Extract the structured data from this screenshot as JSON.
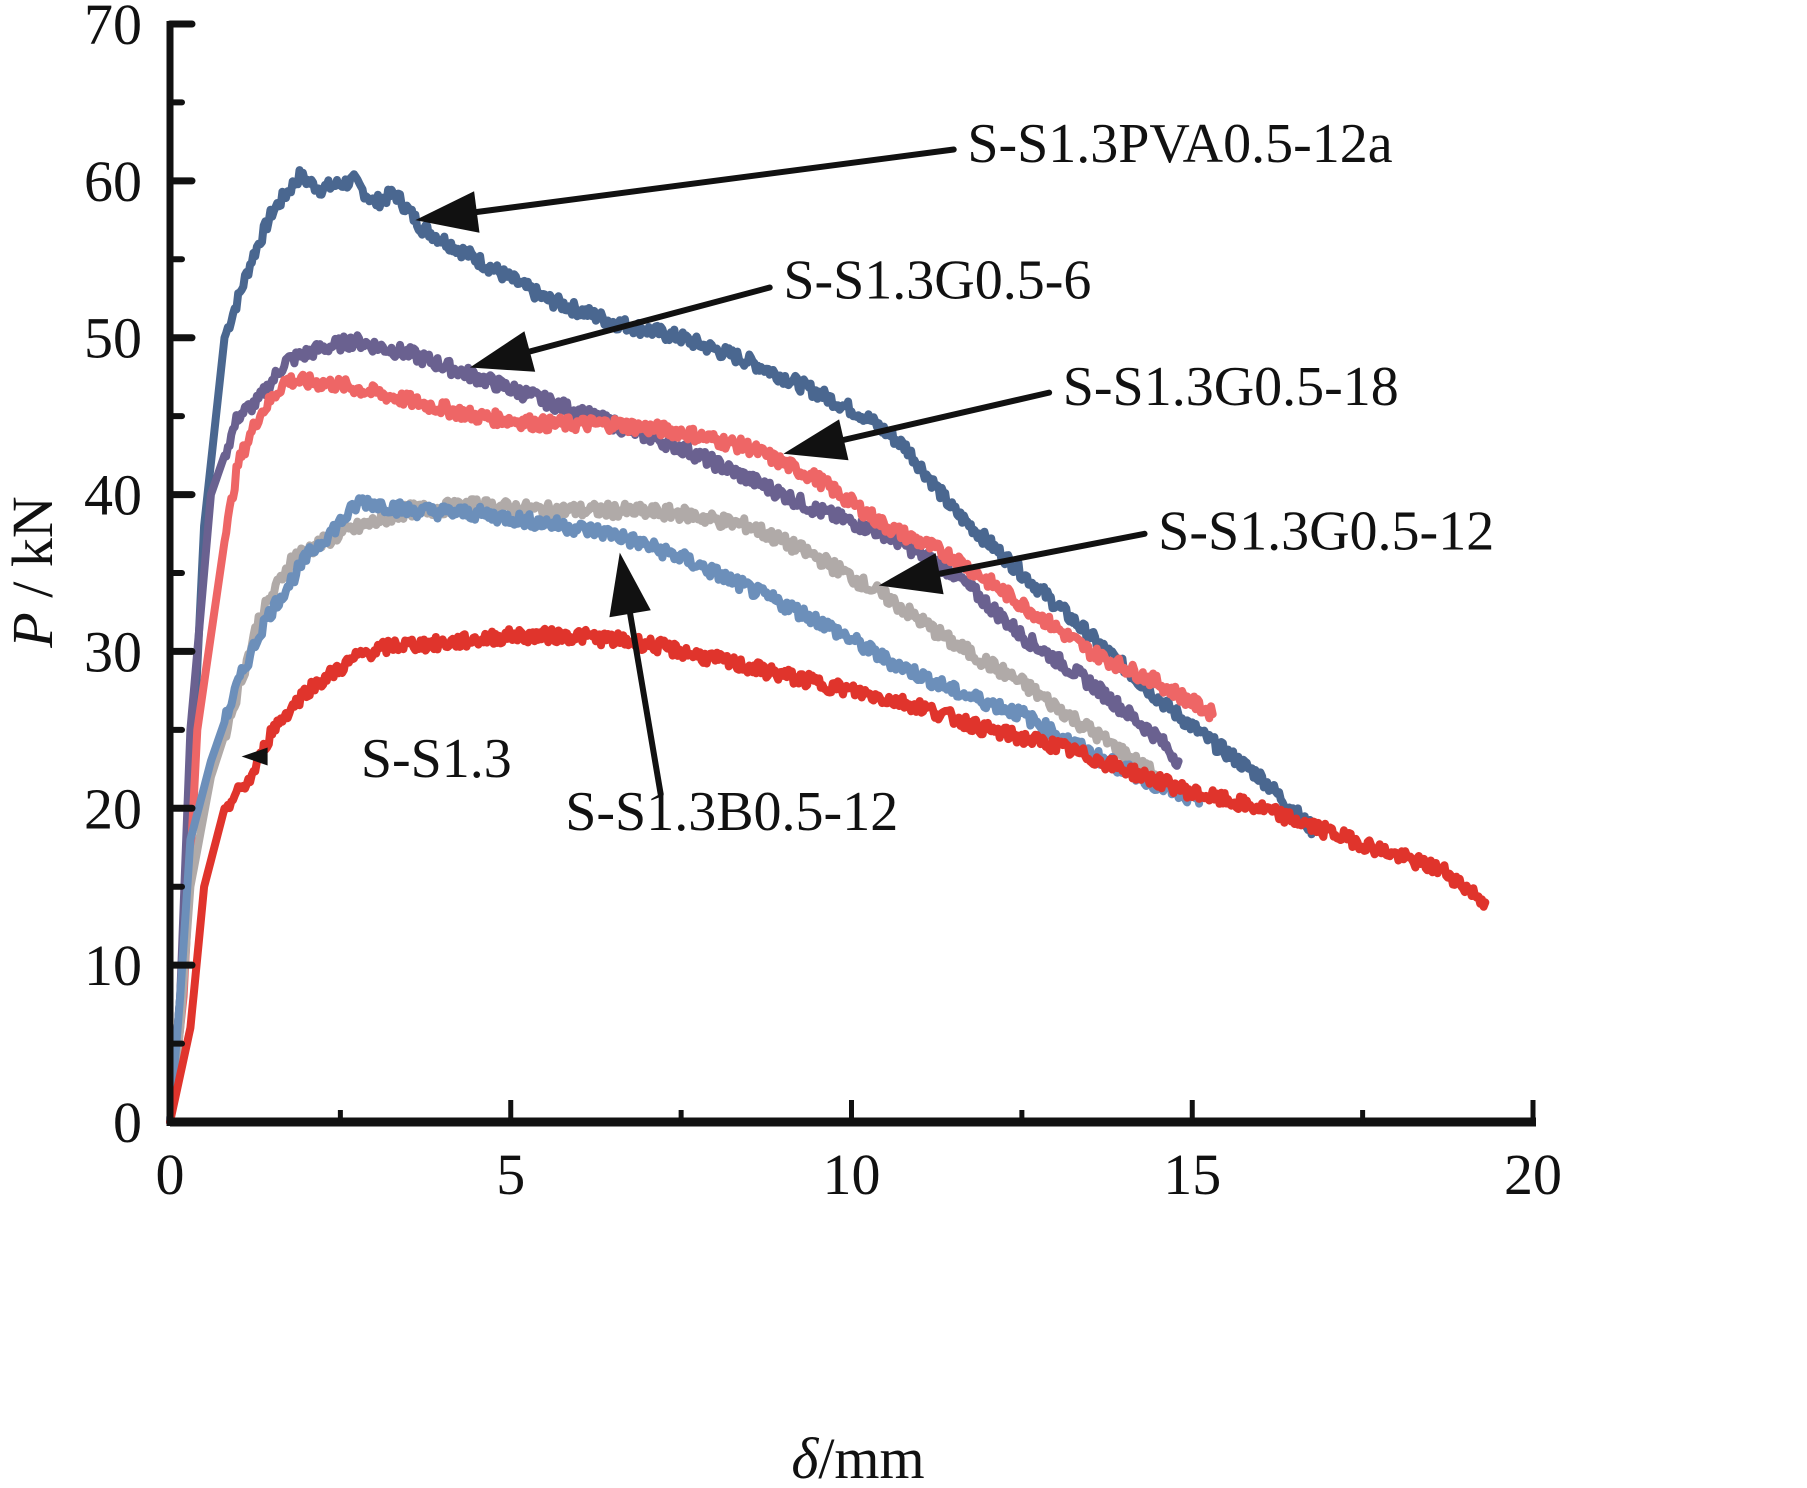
{
  "chart_data": {
    "type": "line",
    "title": "",
    "xlabel": "δ/mm",
    "xlabel_parts": {
      "symbol": "δ",
      "unit": "/mm"
    },
    "ylabel": "P / kN",
    "ylabel_parts": {
      "symbol": "P",
      "unit": " / kN"
    },
    "xlim": [
      0,
      20
    ],
    "ylim": [
      0,
      70
    ],
    "xticks": [
      0,
      5,
      10,
      15,
      20
    ],
    "xtick_labels": [
      "0",
      "5",
      "10",
      "15",
      "20"
    ],
    "xminor": [
      2.5,
      7.5,
      12.5,
      17.5
    ],
    "yticks": [
      0,
      10,
      20,
      30,
      40,
      50,
      60,
      70
    ],
    "ytick_labels": [
      "0",
      "10",
      "20",
      "30",
      "40",
      "50",
      "60",
      "70"
    ],
    "yminor": [
      5,
      15,
      25,
      35,
      45,
      55,
      65
    ],
    "grid": false,
    "legend": "none (curves labeled by annotations with arrows)",
    "series": [
      {
        "name": "S-S1.3PVA0.5-12a",
        "color": "#4a6790",
        "x": [
          0,
          0.15,
          0.3,
          0.5,
          0.8,
          1.2,
          1.5,
          1.9,
          2.2,
          2.7,
          3.0,
          3.3,
          3.7,
          4.5,
          5.5,
          6.5,
          7.5,
          8.5,
          9.5,
          10.2,
          10.8,
          11.5,
          12.5,
          13.5,
          14.5,
          15.2,
          16.0,
          16.8
        ],
        "y": [
          0,
          8,
          20,
          38,
          50,
          55,
          58,
          60.3,
          59.5,
          60,
          58.6,
          59.2,
          57,
          55,
          52.5,
          51,
          50,
          48.5,
          46.5,
          45,
          43,
          39,
          35,
          31,
          27,
          24.5,
          22,
          18.5
        ]
      },
      {
        "name": "S-S1.3G0.5-6",
        "color": "#6a6190",
        "x": [
          0,
          0.15,
          0.3,
          0.6,
          1.0,
          1.3,
          1.7,
          2.2,
          2.7,
          3.5,
          4.5,
          5.5,
          6.5,
          7.5,
          8.5,
          9.5,
          10.5,
          11.5,
          12.5,
          13.5,
          14.5,
          14.8
        ],
        "y": [
          0,
          8,
          25,
          40,
          45,
          46,
          48.5,
          49.3,
          49.8,
          49,
          47.5,
          46,
          44.5,
          43,
          41,
          39,
          37.5,
          35,
          31,
          28,
          24.5,
          23
        ]
      },
      {
        "name": "S-S1.3G0.5-18",
        "color": "#ee6666",
        "x": [
          0,
          0.2,
          0.4,
          0.8,
          1.0,
          1.3,
          1.7,
          2.5,
          3.5,
          4.5,
          5.5,
          6.5,
          7.5,
          8.5,
          9.5,
          10.5,
          11.5,
          12.5,
          13.5,
          14.5,
          15.3
        ],
        "y": [
          0,
          8,
          25,
          37,
          42,
          45,
          47.3,
          47,
          46,
          45,
          44.5,
          44.5,
          44,
          43,
          41,
          38,
          36,
          33,
          30,
          28,
          26
        ]
      },
      {
        "name": "S-S1.3G0.5-12",
        "color": "#b0aaa8",
        "x": [
          0,
          0.15,
          0.3,
          0.6,
          0.9,
          1.3,
          1.8,
          2.5,
          3.5,
          4.5,
          5.5,
          6.5,
          7.5,
          8.5,
          9.5,
          10.5,
          11.5,
          12.5,
          13.5,
          14.5
        ],
        "y": [
          0,
          6,
          15,
          22,
          26,
          32,
          36,
          37.5,
          39,
          39.3,
          39,
          39,
          38.8,
          38,
          36,
          33.5,
          30.5,
          28,
          25,
          22
        ]
      },
      {
        "name": "S-S1.3B0.5-12",
        "color": "#6c8fba",
        "x": [
          0,
          0.15,
          0.3,
          0.6,
          1.0,
          1.4,
          2.0,
          2.8,
          3.5,
          4.5,
          5.5,
          6.5,
          7.5,
          8.5,
          9.5,
          10.5,
          11.5,
          12.5,
          13.5,
          14.5,
          15.1
        ],
        "y": [
          0,
          8,
          18,
          23,
          28,
          32,
          36,
          39.6,
          39,
          38.8,
          38.2,
          37.5,
          36,
          34,
          32,
          29.5,
          27.5,
          26,
          23.5,
          21.5,
          20.3
        ]
      },
      {
        "name": "S-S1.3",
        "color": "#e0342c",
        "x": [
          0,
          0.3,
          0.5,
          0.8,
          1.2,
          1.5,
          2.0,
          2.8,
          3.3,
          4.0,
          5.0,
          6.0,
          7.0,
          8.0,
          9.0,
          10.0,
          11.0,
          12.0,
          13.0,
          14.0,
          15.0,
          16.0,
          17.0,
          18.0,
          18.7,
          19.3
        ],
        "y": [
          0,
          6,
          15,
          20,
          22,
          25,
          27.5,
          29.8,
          30.4,
          30.5,
          31,
          31,
          30.5,
          29.5,
          28.5,
          27.5,
          26.5,
          25,
          24,
          22.5,
          21,
          20,
          18.5,
          17,
          16,
          14
        ]
      }
    ],
    "annotations": [
      {
        "text": "S-S1.3PVA0.5-12a",
        "series": "S-S1.3PVA0.5-12a",
        "label_at": [
          11.7,
          61.2
        ],
        "arrow_from": [
          11.5,
          62
        ],
        "arrow_to": [
          3.6,
          57.5
        ]
      },
      {
        "text": "S-S1.3G0.5-6",
        "series": "S-S1.3G0.5-6",
        "label_at": [
          9.0,
          52.5
        ],
        "arrow_from": [
          8.8,
          53.2
        ],
        "arrow_to": [
          4.4,
          48.1
        ]
      },
      {
        "text": "S-S1.3G0.5-18",
        "series": "S-S1.3G0.5-18",
        "label_at": [
          13.1,
          45.7
        ],
        "arrow_from": [
          12.9,
          46.5
        ],
        "arrow_to": [
          9.0,
          42.6
        ]
      },
      {
        "text": "S-S1.3G0.5-12",
        "series": "S-S1.3G0.5-12",
        "label_at": [
          14.5,
          36.5
        ],
        "arrow_from": [
          14.3,
          37.5
        ],
        "arrow_to": [
          10.4,
          34.2
        ]
      },
      {
        "text": "S-S1.3B0.5-12",
        "series": "S-S1.3B0.5-12",
        "label_at": [
          5.8,
          18.6
        ],
        "arrow_from": [
          7.2,
          20.9
        ],
        "arrow_to": [
          6.6,
          36.3
        ]
      },
      {
        "text": "S-S1.3",
        "series": "S-S1.3",
        "label_at": [
          2.8,
          22.0
        ],
        "arrow_from": [
          1.45,
          23.3
        ],
        "arrow_to": [
          1.05,
          23.3
        ]
      }
    ]
  }
}
